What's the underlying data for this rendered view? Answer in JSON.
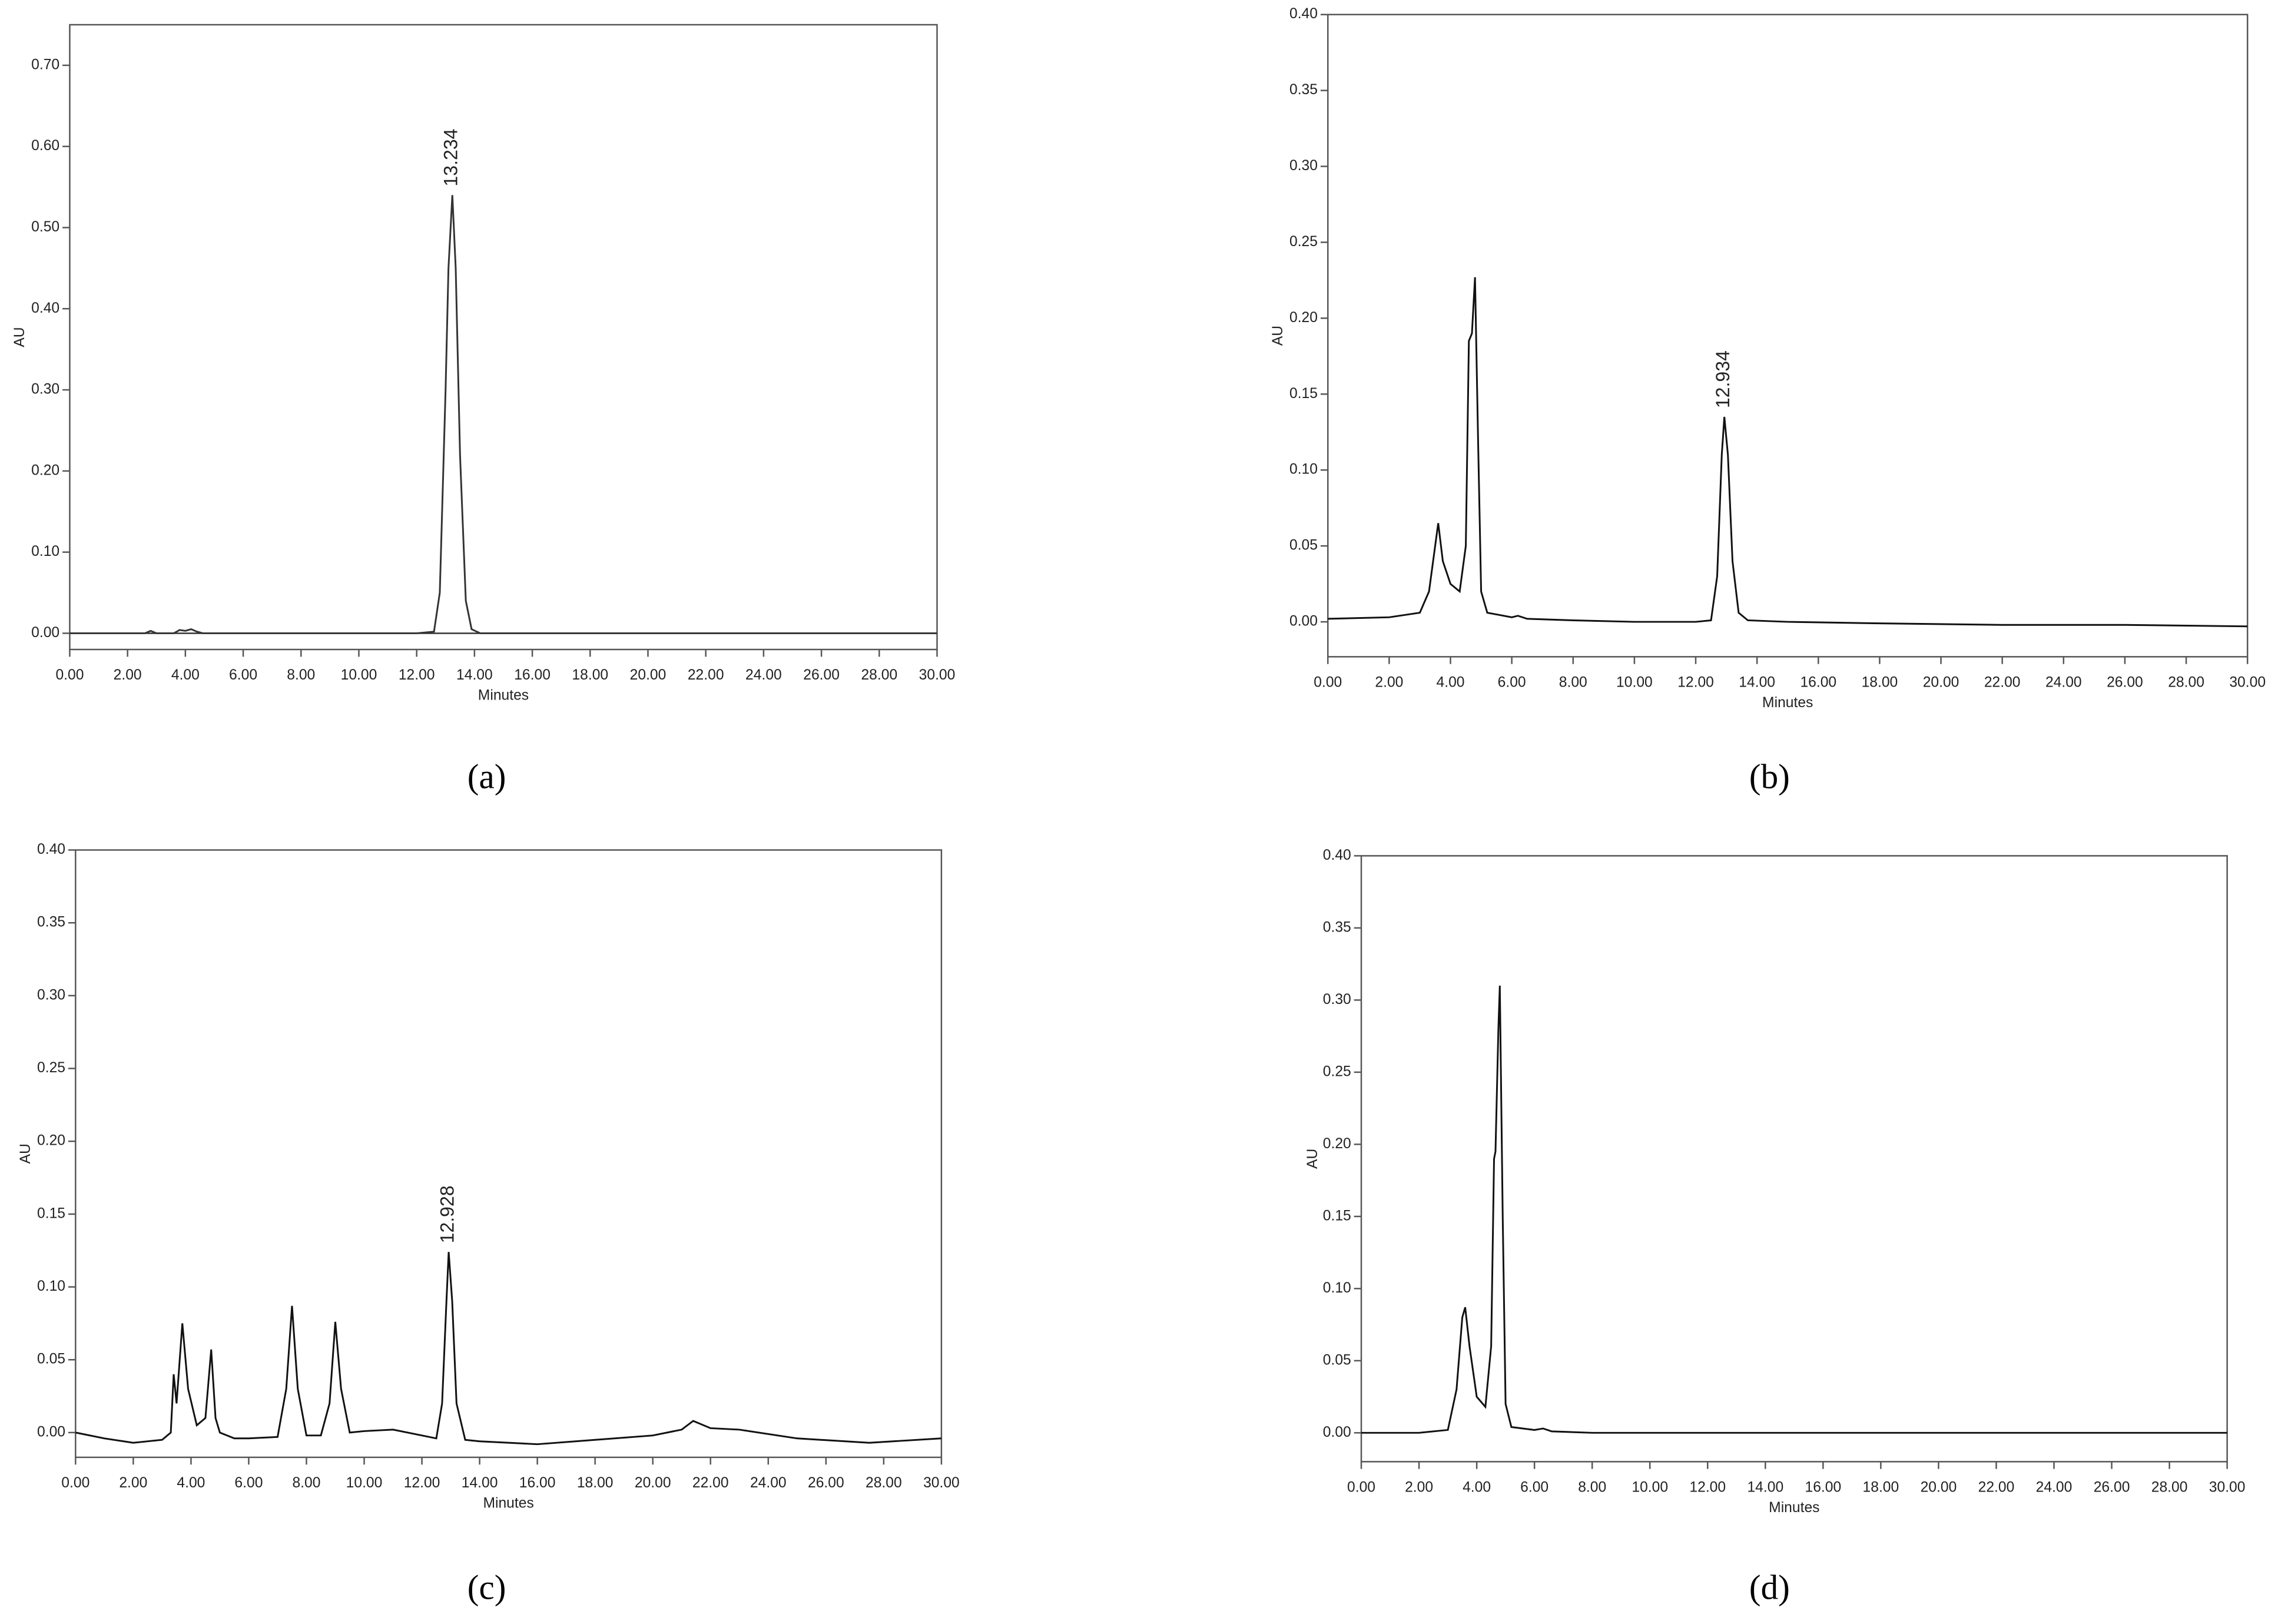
{
  "chart_data": [
    {
      "type": "line",
      "panel_label": "(a)",
      "y_label": "AU",
      "x_label": "Minutes",
      "zero_line": true,
      "x": [
        0,
        2,
        2.6,
        2.8,
        3,
        3.6,
        3.8,
        4.0,
        4.2,
        4.4,
        4.6,
        5,
        8,
        12,
        12.6,
        12.8,
        13.0,
        13.1,
        13.234,
        13.35,
        13.5,
        13.7,
        13.9,
        14.2,
        16,
        20,
        25,
        30
      ],
      "series": [
        {
          "color": "#333333",
          "values": [
            0,
            0,
            0,
            0.003,
            0,
            0,
            0.004,
            0.003,
            0.005,
            0.002,
            0,
            0,
            0,
            0,
            0.002,
            0.05,
            0.3,
            0.45,
            0.54,
            0.45,
            0.22,
            0.04,
            0.005,
            0,
            0,
            0,
            0,
            0
          ]
        }
      ],
      "peak_label": {
        "text": "13.234",
        "x": 13.234,
        "y": 0.54
      },
      "xlim": [
        0,
        30
      ],
      "ylim": [
        -0.02,
        0.75
      ],
      "xticks": [
        {
          "value": 0,
          "label": "0.00"
        },
        {
          "value": 2,
          "label": "2.00"
        },
        {
          "value": 4,
          "label": "4.00"
        },
        {
          "value": 6,
          "label": "6.00"
        },
        {
          "value": 8,
          "label": "8.00"
        },
        {
          "value": 10,
          "label": "10.00"
        },
        {
          "value": 12,
          "label": "12.00"
        },
        {
          "value": 14,
          "label": "14.00"
        },
        {
          "value": 16,
          "label": "16.00"
        },
        {
          "value": 18,
          "label": "18.00"
        },
        {
          "value": 20,
          "label": "20.00"
        },
        {
          "value": 22,
          "label": "22.00"
        },
        {
          "value": 24,
          "label": "24.00"
        },
        {
          "value": 26,
          "label": "26.00"
        },
        {
          "value": 28,
          "label": "28.00"
        },
        {
          "value": 30,
          "label": "30.00"
        }
      ],
      "yticks": [
        {
          "value": 0,
          "label": "0.00"
        },
        {
          "value": 0.1,
          "label": "0.10"
        },
        {
          "value": 0.2,
          "label": "0.20"
        },
        {
          "value": 0.3,
          "label": "0.30"
        },
        {
          "value": 0.4,
          "label": "0.40"
        },
        {
          "value": 0.5,
          "label": "0.50"
        },
        {
          "value": 0.6,
          "label": "0.60"
        },
        {
          "value": 0.7,
          "label": "0.70"
        }
      ]
    },
    {
      "type": "line",
      "panel_label": "(b)",
      "y_label": "AU",
      "x_label": "Minutes",
      "x": [
        0,
        2,
        3,
        3.3,
        3.5,
        3.6,
        3.75,
        4.0,
        4.3,
        4.5,
        4.6,
        4.7,
        4.8,
        4.9,
        5.0,
        5.2,
        6,
        6.2,
        6.5,
        8,
        10,
        12,
        12.5,
        12.7,
        12.85,
        12.934,
        13.05,
        13.2,
        13.4,
        13.7,
        15,
        18,
        22,
        26,
        30
      ],
      "series": [
        {
          "color": "#111111",
          "values": [
            0.002,
            0.003,
            0.006,
            0.02,
            0.05,
            0.065,
            0.04,
            0.025,
            0.02,
            0.05,
            0.185,
            0.19,
            0.227,
            0.12,
            0.02,
            0.006,
            0.003,
            0.004,
            0.002,
            0.001,
            0,
            0,
            0.001,
            0.03,
            0.11,
            0.135,
            0.11,
            0.04,
            0.006,
            0.001,
            0,
            -0.001,
            -0.002,
            -0.002,
            -0.003
          ]
        }
      ],
      "peak_label": {
        "text": "12.934",
        "x": 12.934,
        "y": 0.135
      },
      "xlim": [
        0,
        30
      ],
      "ylim": [
        -0.023,
        0.4
      ],
      "xticks": [
        {
          "value": 0,
          "label": "0.00"
        },
        {
          "value": 2,
          "label": "2.00"
        },
        {
          "value": 4,
          "label": "4.00"
        },
        {
          "value": 6,
          "label": "6.00"
        },
        {
          "value": 8,
          "label": "8.00"
        },
        {
          "value": 10,
          "label": "10.00"
        },
        {
          "value": 12,
          "label": "12.00"
        },
        {
          "value": 14,
          "label": "14.00"
        },
        {
          "value": 16,
          "label": "16.00"
        },
        {
          "value": 18,
          "label": "18.00"
        },
        {
          "value": 20,
          "label": "20.00"
        },
        {
          "value": 22,
          "label": "22.00"
        },
        {
          "value": 24,
          "label": "24.00"
        },
        {
          "value": 26,
          "label": "26.00"
        },
        {
          "value": 28,
          "label": "28.00"
        },
        {
          "value": 30,
          "label": "30.00"
        }
      ],
      "yticks": [
        {
          "value": 0,
          "label": "0.00"
        },
        {
          "value": 0.05,
          "label": "0.05"
        },
        {
          "value": 0.1,
          "label": "0.10"
        },
        {
          "value": 0.15,
          "label": "0.15"
        },
        {
          "value": 0.2,
          "label": "0.20"
        },
        {
          "value": 0.25,
          "label": "0.25"
        },
        {
          "value": 0.3,
          "label": "0.30"
        },
        {
          "value": 0.35,
          "label": "0.35"
        },
        {
          "value": 0.4,
          "label": "0.40"
        }
      ]
    },
    {
      "type": "line",
      "panel_label": "(c)",
      "y_label": "AU",
      "x_label": "Minutes",
      "x": [
        0,
        1,
        2,
        3,
        3.3,
        3.4,
        3.5,
        3.7,
        3.9,
        4.2,
        4.5,
        4.7,
        4.85,
        5.0,
        5.5,
        6,
        7,
        7.3,
        7.5,
        7.7,
        8.0,
        8.5,
        8.8,
        9.0,
        9.2,
        9.5,
        10,
        11,
        12,
        12.5,
        12.7,
        12.85,
        12.928,
        13.05,
        13.2,
        13.5,
        14,
        16,
        18,
        20,
        21,
        21.4,
        22,
        23,
        25,
        27.5,
        30
      ],
      "series": [
        {
          "color": "#111111",
          "values": [
            0,
            -0.004,
            -0.007,
            -0.005,
            0.0,
            0.04,
            0.02,
            0.075,
            0.03,
            0.005,
            0.01,
            0.057,
            0.01,
            0.0,
            -0.004,
            -0.004,
            -0.003,
            0.03,
            0.087,
            0.03,
            -0.002,
            -0.002,
            0.02,
            0.076,
            0.03,
            0.0,
            0.001,
            0.002,
            -0.002,
            -0.004,
            0.02,
            0.09,
            0.124,
            0.09,
            0.02,
            -0.005,
            -0.006,
            -0.008,
            -0.005,
            -0.002,
            0.002,
            0.008,
            0.003,
            0.002,
            -0.004,
            -0.007,
            -0.004
          ]
        }
      ],
      "peak_label": {
        "text": "12.928",
        "x": 12.928,
        "y": 0.124
      },
      "xlim": [
        0,
        30
      ],
      "ylim": [
        -0.017,
        0.4
      ],
      "xticks": [
        {
          "value": 0,
          "label": "0.00"
        },
        {
          "value": 2,
          "label": "2.00"
        },
        {
          "value": 4,
          "label": "4.00"
        },
        {
          "value": 6,
          "label": "6.00"
        },
        {
          "value": 8,
          "label": "8.00"
        },
        {
          "value": 10,
          "label": "10.00"
        },
        {
          "value": 12,
          "label": "12.00"
        },
        {
          "value": 14,
          "label": "14.00"
        },
        {
          "value": 16,
          "label": "16.00"
        },
        {
          "value": 18,
          "label": "18.00"
        },
        {
          "value": 20,
          "label": "20.00"
        },
        {
          "value": 22,
          "label": "22.00"
        },
        {
          "value": 24,
          "label": "24.00"
        },
        {
          "value": 26,
          "label": "26.00"
        },
        {
          "value": 28,
          "label": "28.00"
        },
        {
          "value": 30,
          "label": "30.00"
        }
      ],
      "yticks": [
        {
          "value": 0,
          "label": "0.00"
        },
        {
          "value": 0.05,
          "label": "0.05"
        },
        {
          "value": 0.1,
          "label": "0.10"
        },
        {
          "value": 0.15,
          "label": "0.15"
        },
        {
          "value": 0.2,
          "label": "0.20"
        },
        {
          "value": 0.25,
          "label": "0.25"
        },
        {
          "value": 0.3,
          "label": "0.30"
        },
        {
          "value": 0.35,
          "label": "0.35"
        },
        {
          "value": 0.4,
          "label": "0.40"
        }
      ]
    },
    {
      "type": "line",
      "panel_label": "(d)",
      "y_label": "AU",
      "x_label": "Minutes",
      "x": [
        0,
        2,
        3,
        3.3,
        3.5,
        3.6,
        3.75,
        4.0,
        4.3,
        4.5,
        4.6,
        4.65,
        4.75,
        4.8,
        4.9,
        5.0,
        5.2,
        6,
        6.3,
        6.6,
        8,
        8.5,
        10,
        15,
        20,
        25,
        30
      ],
      "series": [
        {
          "color": "#111111",
          "values": [
            0,
            0,
            0.002,
            0.03,
            0.08,
            0.087,
            0.06,
            0.025,
            0.018,
            0.06,
            0.19,
            0.195,
            0.28,
            0.31,
            0.15,
            0.02,
            0.004,
            0.002,
            0.003,
            0.001,
            0,
            0,
            0,
            0,
            0,
            0,
            0
          ]
        }
      ],
      "xlim": [
        0,
        30
      ],
      "ylim": [
        -0.02,
        0.4
      ],
      "xticks": [
        {
          "value": 0,
          "label": "0.00"
        },
        {
          "value": 2,
          "label": "2.00"
        },
        {
          "value": 4,
          "label": "4.00"
        },
        {
          "value": 6,
          "label": "6.00"
        },
        {
          "value": 8,
          "label": "8.00"
        },
        {
          "value": 10,
          "label": "10.00"
        },
        {
          "value": 12,
          "label": "12.00"
        },
        {
          "value": 14,
          "label": "14.00"
        },
        {
          "value": 16,
          "label": "16.00"
        },
        {
          "value": 18,
          "label": "18.00"
        },
        {
          "value": 20,
          "label": "20.00"
        },
        {
          "value": 22,
          "label": "22.00"
        },
        {
          "value": 24,
          "label": "24.00"
        },
        {
          "value": 26,
          "label": "26.00"
        },
        {
          "value": 28,
          "label": "28.00"
        },
        {
          "value": 30,
          "label": "30.00"
        }
      ],
      "yticks": [
        {
          "value": 0,
          "label": "0.00"
        },
        {
          "value": 0.05,
          "label": "0.05"
        },
        {
          "value": 0.1,
          "label": "0.10"
        },
        {
          "value": 0.15,
          "label": "0.15"
        },
        {
          "value": 0.2,
          "label": "0.20"
        },
        {
          "value": 0.25,
          "label": "0.25"
        },
        {
          "value": 0.3,
          "label": "0.30"
        },
        {
          "value": 0.35,
          "label": "0.35"
        },
        {
          "value": 0.4,
          "label": "0.40"
        }
      ]
    }
  ]
}
